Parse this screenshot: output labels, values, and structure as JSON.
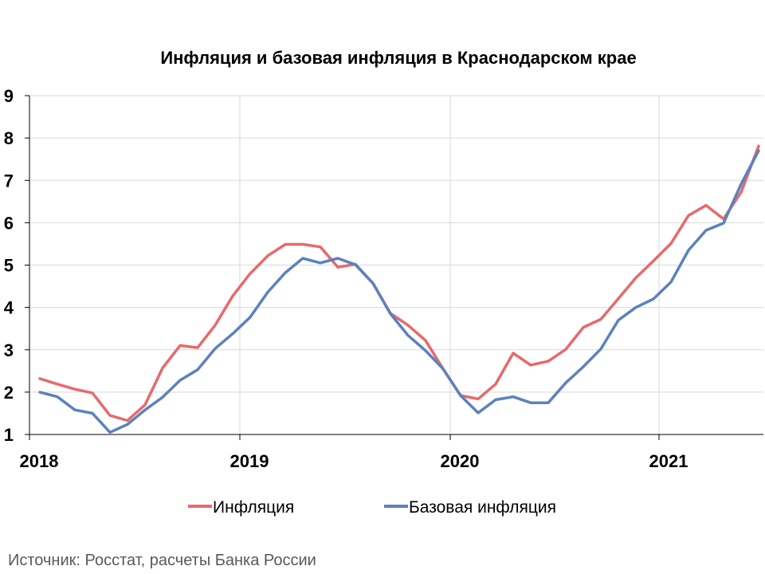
{
  "source_note": "Источник: Росстат, расчеты Банка России",
  "chart_data": {
    "type": "line",
    "title": "Инфляция и базовая инфляция в Краснодарском крае",
    "xlabel": "",
    "ylabel": "",
    "ylim": [
      1,
      9
    ],
    "yticks": [
      "1",
      "2",
      "3",
      "4",
      "5",
      "6",
      "7",
      "8",
      "9"
    ],
    "xticks": [
      "2018",
      "2019",
      "2020",
      "2021"
    ],
    "grid": true,
    "legend_position": "bottom",
    "x_start": "2018-01",
    "x_frequency": "monthly",
    "x": [
      "2018-01",
      "2018-02",
      "2018-03",
      "2018-04",
      "2018-05",
      "2018-06",
      "2018-07",
      "2018-08",
      "2018-09",
      "2018-10",
      "2018-11",
      "2018-12",
      "2019-01",
      "2019-02",
      "2019-03",
      "2019-04",
      "2019-05",
      "2019-06",
      "2019-07",
      "2019-08",
      "2019-09",
      "2019-10",
      "2019-11",
      "2019-12",
      "2020-01",
      "2020-02",
      "2020-03",
      "2020-04",
      "2020-05",
      "2020-06",
      "2020-07",
      "2020-08",
      "2020-09",
      "2020-10",
      "2020-11",
      "2020-12",
      "2021-01",
      "2021-02",
      "2021-03",
      "2021-04",
      "2021-05",
      "2021-06"
    ],
    "series": [
      {
        "name": "Инфляция",
        "color": "#e8696b",
        "values": [
          2.32,
          2.19,
          2.07,
          1.98,
          1.45,
          1.33,
          1.7,
          2.57,
          3.1,
          3.05,
          3.58,
          4.27,
          4.8,
          5.22,
          5.49,
          5.49,
          5.43,
          4.95,
          5.02,
          4.57,
          3.86,
          3.58,
          3.22,
          2.55,
          1.92,
          1.84,
          2.19,
          2.92,
          2.64,
          2.73,
          3.01,
          3.53,
          3.72,
          4.21,
          4.7,
          5.1,
          5.51,
          6.17,
          6.41,
          6.09,
          6.72,
          7.81
        ]
      },
      {
        "name": "Базовая инфляция",
        "color": "#5b82bd",
        "values": [
          2.0,
          1.89,
          1.58,
          1.5,
          1.05,
          1.24,
          1.58,
          1.88,
          2.28,
          2.53,
          3.03,
          3.38,
          3.77,
          4.36,
          4.82,
          5.16,
          5.05,
          5.16,
          5.01,
          4.57,
          3.85,
          3.34,
          2.98,
          2.55,
          1.92,
          1.51,
          1.82,
          1.89,
          1.75,
          1.75,
          2.22,
          2.6,
          3.02,
          3.7,
          4.0,
          4.2,
          4.6,
          5.35,
          5.82,
          5.99,
          6.91,
          7.7
        ]
      }
    ]
  }
}
